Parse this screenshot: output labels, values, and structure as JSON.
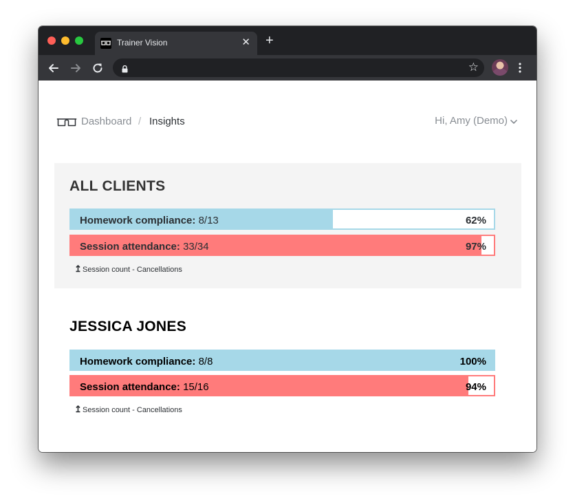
{
  "browser": {
    "tab_title": "Trainer Vision",
    "tab_close": "✕",
    "new_tab": "+",
    "star_icon": "☆",
    "url": ""
  },
  "header": {
    "breadcrumb": {
      "root": "Dashboard",
      "separator": "/",
      "current": "Insights"
    },
    "user_greeting": "Hi, Amy (Demo)"
  },
  "colors": {
    "homework": "#a6d8e8",
    "attendance": "#ff7b7b",
    "card_background": "#f4f4f4"
  },
  "sections": [
    {
      "title": "ALL CLIENTS",
      "homework": {
        "label": "Homework compliance:",
        "value": "8/13",
        "percent": "62%",
        "fraction": 0.62
      },
      "attendance": {
        "label": "Session attendance:",
        "value": "33/34",
        "percent": "97%",
        "fraction": 0.97
      },
      "footnote": "Session count - Cancellations"
    },
    {
      "title": "JESSICA JONES",
      "homework": {
        "label": "Homework compliance:",
        "value": "8/8",
        "percent": "100%",
        "fraction": 1.0
      },
      "attendance": {
        "label": "Session attendance:",
        "value": "15/16",
        "percent": "94%",
        "fraction": 0.94
      },
      "footnote": "Session count - Cancellations"
    }
  ]
}
